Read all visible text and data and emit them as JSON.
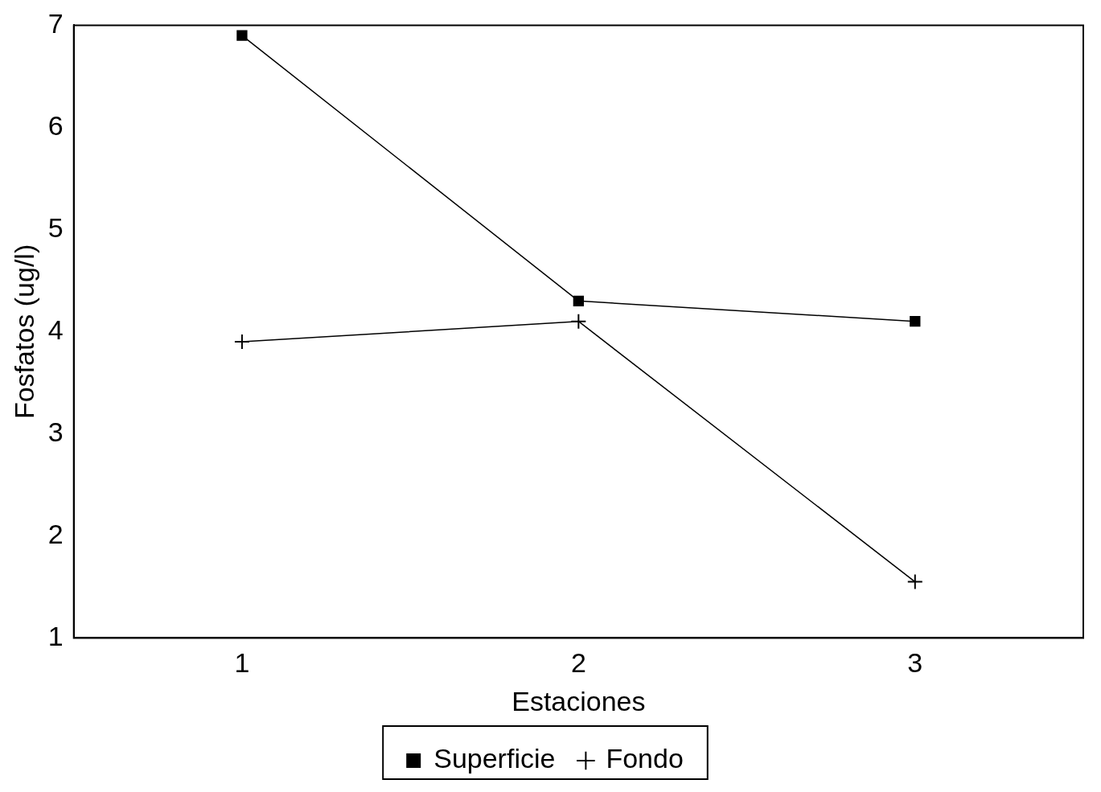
{
  "chart_data": {
    "type": "line",
    "xlabel": "Estaciones",
    "ylabel": "Fosfatos (ug/l)",
    "x": [
      1,
      2,
      3
    ],
    "series": [
      {
        "name": "Superficie",
        "color": "#000000",
        "marker": "square",
        "values": [
          6.9,
          4.3,
          4.1
        ]
      },
      {
        "name": "Fondo",
        "color": "#000000",
        "marker": "cross",
        "values": [
          3.9,
          4.1,
          1.55
        ]
      }
    ],
    "xlim": [
      0.5,
      3.5
    ],
    "xticks": [
      1,
      2,
      3
    ],
    "ylim": [
      1,
      7
    ],
    "yticks": [
      1,
      2,
      3,
      4,
      5,
      6,
      7
    ],
    "grid": false,
    "legend": "bottom",
    "line_style": "solid"
  }
}
